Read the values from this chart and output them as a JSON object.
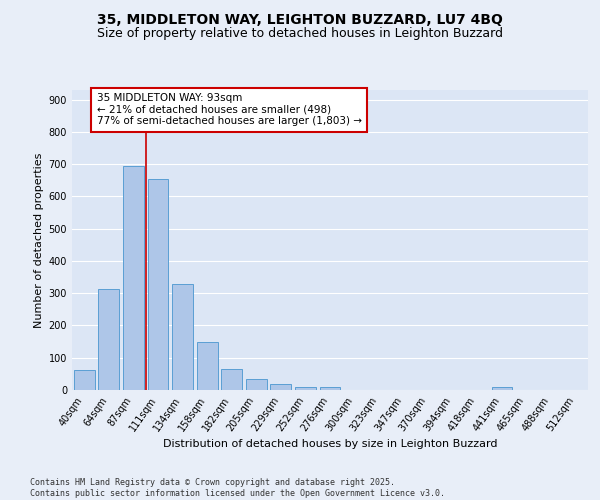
{
  "title_line1": "35, MIDDLETON WAY, LEIGHTON BUZZARD, LU7 4BQ",
  "title_line2": "Size of property relative to detached houses in Leighton Buzzard",
  "xlabel": "Distribution of detached houses by size in Leighton Buzzard",
  "ylabel": "Number of detached properties",
  "categories": [
    "40sqm",
    "64sqm",
    "87sqm",
    "111sqm",
    "134sqm",
    "158sqm",
    "182sqm",
    "205sqm",
    "229sqm",
    "252sqm",
    "276sqm",
    "300sqm",
    "323sqm",
    "347sqm",
    "370sqm",
    "394sqm",
    "418sqm",
    "441sqm",
    "465sqm",
    "488sqm",
    "512sqm"
  ],
  "values": [
    63,
    312,
    695,
    655,
    330,
    150,
    65,
    35,
    20,
    10,
    10,
    0,
    0,
    0,
    0,
    0,
    0,
    10,
    0,
    0,
    0
  ],
  "bar_color": "#aec6e8",
  "bar_edge_color": "#5a9fd4",
  "vline_x": 2.5,
  "vline_color": "#cc0000",
  "annotation_text": "35 MIDDLETON WAY: 93sqm\n← 21% of detached houses are smaller (498)\n77% of semi-detached houses are larger (1,803) →",
  "annotation_box_color": "#ffffff",
  "annotation_box_edge": "#cc0000",
  "ylim": [
    0,
    930
  ],
  "yticks": [
    0,
    100,
    200,
    300,
    400,
    500,
    600,
    700,
    800,
    900
  ],
  "background_color": "#dce6f5",
  "grid_color": "#ffffff",
  "footer": "Contains HM Land Registry data © Crown copyright and database right 2025.\nContains public sector information licensed under the Open Government Licence v3.0.",
  "title_fontsize": 10,
  "subtitle_fontsize": 9,
  "axis_label_fontsize": 8,
  "tick_fontsize": 7,
  "annotation_fontsize": 7.5,
  "fig_bg_color": "#e8eef8"
}
